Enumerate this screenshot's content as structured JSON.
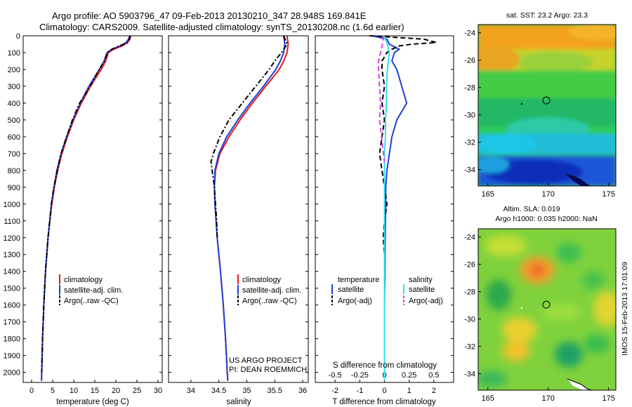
{
  "figure": {
    "title_line1": "Argo profile: AO 5903796_47 09-Feb-2013 20130210_347 28.948S 169.841E",
    "title_line2": "Climatology: CARS2009. Satellite-adjusted climatology: synTS_20130208.nc (1.6d earlier)",
    "credit_line1": "US ARGO PROJECT",
    "credit_line2": "PI: DEAN ROEMMICH",
    "imos_stamp": "IMOS 15-Feb-2013 17:01:09",
    "sst_title": "sat. SST: 23.2 Argo: 23.3",
    "sla_title1": "Altim. SLA: 0.019",
    "sla_title2": "Argo h1000: 0.035 h2000: NaN"
  },
  "colors": {
    "climatology": "#e41a1c",
    "satellite": "#1f3fd6",
    "argo": "#000000",
    "t_satellite": "#1f3fd6",
    "s_satellite": "#33e0f0",
    "s_argo": "#e040e0"
  },
  "chart_data": [
    {
      "type": "line",
      "xlabel": "temperature (deg C)",
      "ylabel": "",
      "xlim": [
        -2,
        31
      ],
      "ylim": [
        2060,
        0
      ],
      "xticks": [
        0,
        5,
        10,
        15,
        20,
        25,
        30
      ],
      "yticks": [
        0,
        100,
        200,
        300,
        400,
        500,
        600,
        700,
        800,
        900,
        1000,
        1100,
        1200,
        1300,
        1400,
        1500,
        1600,
        1700,
        1800,
        1900,
        2000
      ],
      "legend": [
        "climatology",
        "satellite-adj. clim.",
        "Argo(..raw -QC)"
      ],
      "series": [
        {
          "name": "climatology",
          "depth": [
            0,
            20,
            40,
            60,
            80,
            100,
            150,
            200,
            300,
            400,
            500,
            600,
            700,
            800,
            900,
            1000,
            1200,
            1400,
            1600,
            1800,
            2000,
            2050
          ],
          "values": [
            23.6,
            23.3,
            22.8,
            21.5,
            19.5,
            18.2,
            17.6,
            16.5,
            14.0,
            11.8,
            10.0,
            8.5,
            7.2,
            6.2,
            5.4,
            4.8,
            3.9,
            3.3,
            2.9,
            2.6,
            2.4,
            2.35
          ]
        },
        {
          "name": "satellite-adj. clim.",
          "depth": [
            0,
            20,
            40,
            60,
            80,
            100,
            150,
            200,
            300,
            400,
            500,
            600,
            700,
            800,
            900,
            1000,
            1200,
            1400,
            1600,
            1800,
            2000,
            2050
          ],
          "values": [
            23.3,
            23.0,
            22.4,
            21.0,
            19.0,
            17.9,
            17.2,
            16.1,
            13.6,
            11.6,
            9.8,
            8.3,
            7.0,
            6.0,
            5.3,
            4.7,
            3.9,
            3.3,
            2.9,
            2.6,
            2.4,
            2.35
          ]
        },
        {
          "name": "Argo(..raw -QC)",
          "depth": [
            0,
            20,
            40,
            60,
            80,
            100,
            150,
            200,
            300,
            400,
            500,
            600,
            700,
            800,
            900,
            1000,
            1200,
            1400,
            1600,
            1800,
            2000
          ],
          "values": [
            23.3,
            23.2,
            22.9,
            20.8,
            19.1,
            18.0,
            17.3,
            16.0,
            13.9,
            11.4,
            9.7,
            8.3,
            7.0,
            6.1,
            5.3,
            4.7,
            3.9,
            3.3,
            2.9,
            2.6,
            2.4
          ]
        }
      ]
    },
    {
      "type": "line",
      "xlabel": "salinity",
      "ylabel": "",
      "xlim": [
        33.6,
        36.1
      ],
      "ylim": [
        2060,
        0
      ],
      "xticks": [
        34,
        34.5,
        35,
        35.5,
        36
      ],
      "legend": [
        "climatology",
        "satellite-adj. clim.",
        "Argo(..raw -QC)"
      ],
      "series": [
        {
          "name": "climatology",
          "depth": [
            0,
            50,
            100,
            150,
            200,
            300,
            400,
            500,
            600,
            700,
            800,
            900,
            1000,
            1200,
            1400,
            1600,
            1800,
            2000,
            2050
          ],
          "values": [
            35.72,
            35.74,
            35.72,
            35.66,
            35.58,
            35.34,
            35.1,
            34.88,
            34.68,
            34.52,
            34.44,
            34.42,
            34.43,
            34.47,
            34.53,
            34.58,
            34.62,
            34.65,
            34.66
          ]
        },
        {
          "name": "satellite-adj. clim.",
          "depth": [
            0,
            50,
            100,
            150,
            200,
            300,
            400,
            500,
            600,
            700,
            800,
            900,
            1000,
            1200,
            1400,
            1600,
            1800,
            2000,
            2050
          ],
          "values": [
            35.66,
            35.68,
            35.66,
            35.6,
            35.52,
            35.3,
            35.06,
            34.84,
            34.64,
            34.5,
            34.43,
            34.42,
            34.43,
            34.47,
            34.53,
            34.58,
            34.62,
            34.65,
            34.66
          ]
        },
        {
          "name": "Argo(..raw -QC)",
          "depth": [
            0,
            50,
            100,
            150,
            200,
            300,
            400,
            500,
            600,
            700,
            750,
            800,
            900,
            1000,
            1100,
            1200
          ],
          "values": [
            35.66,
            35.72,
            35.62,
            35.5,
            35.4,
            35.16,
            34.92,
            34.68,
            34.52,
            34.4,
            34.36,
            34.38,
            34.42,
            34.44,
            34.46,
            34.47
          ]
        }
      ]
    },
    {
      "type": "line",
      "xlabel": "T difference from climatology",
      "xlabel2": "S difference from climatology",
      "ylabel": "",
      "xlim": [
        -2.8,
        2.8
      ],
      "ylim": [
        2060,
        0
      ],
      "xticks": [
        -2,
        -1,
        0,
        1,
        2
      ],
      "xticks_s": [
        -0.5,
        -0.25,
        0,
        0.25,
        0.5
      ],
      "legend_titles": [
        "temperature",
        "salinity"
      ],
      "legend": [
        "satellite",
        "Argo(-adj)",
        "satellite",
        "Argo(-adj)"
      ],
      "series": [
        {
          "name": "satellite",
          "group": "temperature",
          "depth": [
            0,
            20,
            50,
            80,
            100,
            150,
            200,
            300,
            400,
            500,
            600,
            700,
            800,
            900,
            1000,
            1200,
            1400,
            1600,
            1800,
            2000,
            2050
          ],
          "values": [
            -0.5,
            0.1,
            0.2,
            0.6,
            0.4,
            0.3,
            0.5,
            0.7,
            0.9,
            0.5,
            0.3,
            0.2,
            0.1,
            0.05,
            0.05,
            0.03,
            0.02,
            0.0,
            0.0,
            0.0,
            0.0
          ]
        },
        {
          "name": "Argo(-adj)",
          "group": "temperature",
          "depth": [
            0,
            20,
            40,
            50,
            60,
            80,
            100,
            150,
            200,
            300,
            400,
            500,
            600,
            700,
            800,
            900,
            1000,
            1100,
            1200,
            1300,
            1400,
            1600,
            1800,
            2000
          ],
          "values": [
            -0.6,
            1.6,
            2.1,
            1.1,
            0.6,
            0.3,
            0.1,
            -0.1,
            -0.1,
            0.0,
            -0.1,
            0.0,
            -0.1,
            -0.2,
            -0.1,
            0.0,
            0.1,
            0.0,
            -0.05,
            0.0,
            0.0,
            0.0,
            0.0,
            0.0
          ]
        },
        {
          "name": "satellite",
          "group": "salinity",
          "depth": [
            0,
            20,
            50,
            100,
            200,
            300,
            400,
            500,
            600,
            700,
            800,
            900,
            1000,
            1200,
            1400,
            1600,
            1800,
            2000,
            2050
          ],
          "values": [
            -0.02,
            0.01,
            0.03,
            0.05,
            0.03,
            0.02,
            0.02,
            0.01,
            0.01,
            0.0,
            0.0,
            0.0,
            0.0,
            0.0,
            0.0,
            0.0,
            0.0,
            0.0,
            0.0
          ]
        },
        {
          "name": "Argo(-adj)",
          "group": "salinity",
          "depth": [
            0,
            50,
            100,
            150,
            200,
            300,
            400,
            500,
            600,
            700,
            750
          ],
          "values": [
            -0.01,
            -0.02,
            -0.04,
            -0.06,
            -0.06,
            -0.05,
            -0.04,
            -0.05,
            -0.03,
            -0.01,
            0.0
          ]
        }
      ]
    },
    {
      "type": "heatmap",
      "title": "sat. SST: 23.2 Argo: 23.3",
      "xlim": [
        164.2,
        175.6
      ],
      "ylim": [
        -35.2,
        -23.4
      ],
      "xticks": [
        165,
        170,
        175
      ],
      "yticks": [
        -24,
        -26,
        -28,
        -30,
        -32,
        -34
      ],
      "argo_position": [
        169.841,
        -28.948
      ]
    },
    {
      "type": "heatmap",
      "title": "Altim. SLA: 0.019",
      "xlim": [
        164.2,
        175.6
      ],
      "ylim": [
        -35.2,
        -23.4
      ],
      "xticks": [
        165,
        170,
        175
      ],
      "yticks": [
        -24,
        -26,
        -28,
        -30,
        -32,
        -34
      ],
      "argo_position": [
        169.841,
        -28.948
      ]
    }
  ]
}
